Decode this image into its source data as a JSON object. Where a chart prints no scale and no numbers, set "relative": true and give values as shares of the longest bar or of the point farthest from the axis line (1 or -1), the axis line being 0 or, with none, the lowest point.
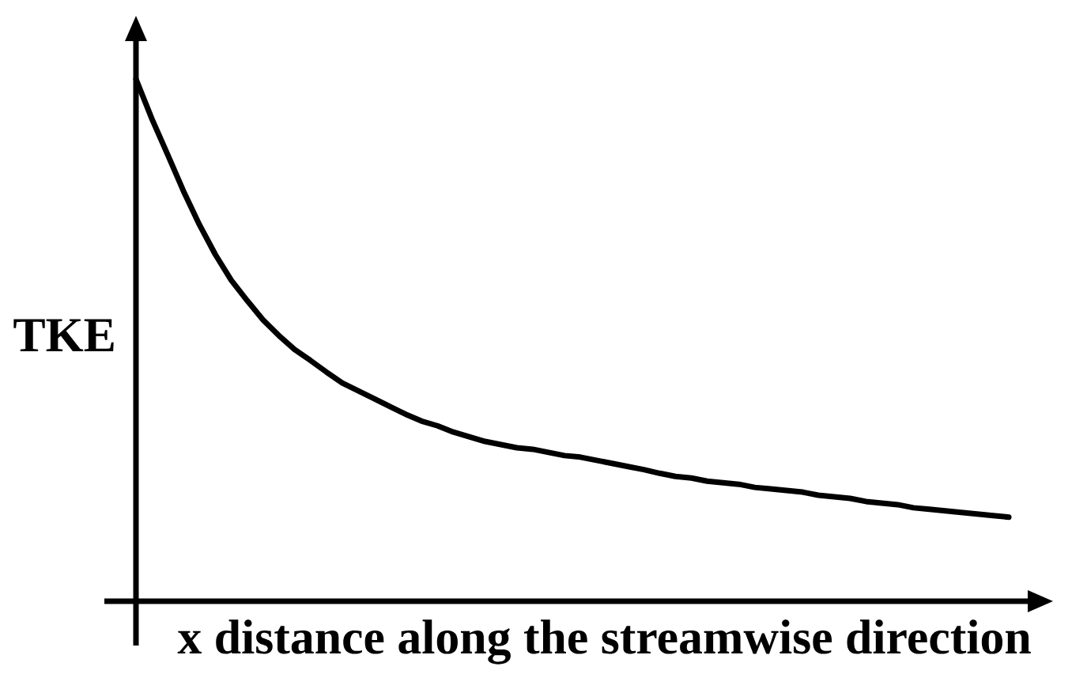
{
  "chart_data": {
    "type": "line",
    "xlabel": "x distance along the streamwise direction",
    "ylabel": "TKE",
    "relative": true,
    "line_style": "solid",
    "color": "#000000",
    "categories": [
      null,
      null,
      null,
      null,
      null,
      null,
      null,
      null,
      null,
      null,
      null,
      null,
      null,
      null,
      null,
      null,
      null,
      null,
      null,
      null,
      null,
      null,
      null,
      null,
      null,
      null,
      null,
      null,
      null,
      null,
      null,
      null,
      null,
      null,
      null,
      null,
      null,
      null,
      null,
      null,
      null,
      null,
      null,
      null,
      null,
      null,
      null,
      null,
      null,
      null,
      null,
      null,
      null,
      null,
      null,
      null
    ],
    "values": [
      1,
      0.924,
      0.855,
      0.785,
      0.721,
      0.664,
      0.615,
      0.576,
      0.539,
      0.509,
      0.482,
      0.461,
      0.439,
      0.418,
      0.403,
      0.388,
      0.373,
      0.358,
      0.345,
      0.336,
      0.324,
      0.315,
      0.306,
      0.3,
      0.294,
      0.291,
      0.285,
      0.279,
      0.276,
      0.27,
      0.264,
      0.258,
      0.252,
      0.245,
      0.239,
      0.236,
      0.23,
      0.227,
      0.224,
      0.218,
      0.215,
      0.212,
      0.209,
      0.203,
      0.2,
      0.197,
      0.191,
      0.188,
      0.185,
      0.179,
      0.176,
      0.173,
      0.17,
      0.167,
      0.164,
      0.161
    ]
  }
}
